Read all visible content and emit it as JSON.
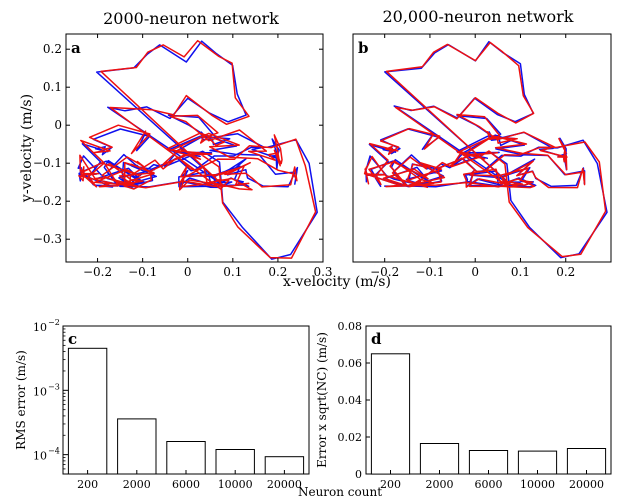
{
  "chart_data": [
    {
      "panel": "a",
      "type": "line",
      "title": "2000-neuron network",
      "xlabel": "x-velocity (m/s)",
      "ylabel": "y-velocity (m/s)",
      "xlim": [
        -0.27,
        0.3
      ],
      "ylim": [
        -0.36,
        0.24
      ],
      "xticks": [
        "−0.2",
        "−0.1",
        "0",
        "0.1",
        "0.2",
        "0.3"
      ],
      "yticks": [
        "0.2",
        "0.1",
        "0",
        "−0.1",
        "−0.2",
        "−0.3"
      ],
      "colors": {
        "series1": "#1010ee",
        "series2": "#ee1010"
      },
      "loop": [
        [
          0.02,
          -0.12
        ],
        [
          0.06,
          -0.08
        ],
        [
          0.1,
          -0.08
        ],
        [
          0.14,
          -0.06
        ],
        [
          0.18,
          -0.06
        ],
        [
          0.24,
          -0.04
        ],
        [
          0.27,
          -0.1
        ],
        [
          0.29,
          -0.23
        ],
        [
          0.23,
          -0.34
        ],
        [
          0.19,
          -0.35
        ],
        [
          0.12,
          -0.27
        ],
        [
          0.08,
          -0.2
        ],
        [
          0.07,
          -0.1
        ],
        [
          0.03,
          -0.07
        ]
      ],
      "top_loop": [
        [
          -0.2,
          0.14
        ],
        [
          -0.12,
          0.15
        ],
        [
          -0.09,
          0.19
        ],
        [
          -0.06,
          0.21
        ],
        [
          0.0,
          0.17
        ],
        [
          0.03,
          0.22
        ],
        [
          0.06,
          0.19
        ],
        [
          0.1,
          0.16
        ],
        [
          0.11,
          0.08
        ],
        [
          0.13,
          0.03
        ],
        [
          0.09,
          0.01
        ],
        [
          0.05,
          0.03
        ],
        [
          0.0,
          0.07
        ],
        [
          -0.04,
          0.02
        ],
        [
          -0.09,
          0.05
        ],
        [
          -0.14,
          0.04
        ],
        [
          -0.18,
          0.05
        ]
      ],
      "pad": 0.22,
      "base_seed": 11
    },
    {
      "panel": "b",
      "type": "line",
      "title": "20,000-neuron network",
      "xlabel": "x-velocity (m/s)",
      "xlim": [
        -0.27,
        0.3
      ],
      "ylim": [
        -0.36,
        0.24
      ],
      "xticks": [
        "−0.2",
        "−0.1",
        "0",
        "0.1",
        "0.2"
      ],
      "colors": {
        "series1": "#1010ee",
        "series2": "#ee1010"
      },
      "loop": [
        [
          0.02,
          -0.12
        ],
        [
          0.06,
          -0.08
        ],
        [
          0.1,
          -0.08
        ],
        [
          0.14,
          -0.06
        ],
        [
          0.18,
          -0.06
        ],
        [
          0.24,
          -0.04
        ],
        [
          0.27,
          -0.1
        ],
        [
          0.29,
          -0.23
        ],
        [
          0.23,
          -0.34
        ],
        [
          0.19,
          -0.35
        ],
        [
          0.12,
          -0.27
        ],
        [
          0.08,
          -0.2
        ],
        [
          0.07,
          -0.1
        ],
        [
          0.03,
          -0.07
        ]
      ],
      "top_loop": [
        [
          -0.2,
          0.14
        ],
        [
          -0.12,
          0.15
        ],
        [
          -0.09,
          0.19
        ],
        [
          -0.06,
          0.21
        ],
        [
          0.0,
          0.17
        ],
        [
          0.03,
          0.22
        ],
        [
          0.06,
          0.19
        ],
        [
          0.1,
          0.16
        ],
        [
          0.11,
          0.08
        ],
        [
          0.13,
          0.03
        ],
        [
          0.09,
          0.01
        ],
        [
          0.05,
          0.03
        ],
        [
          0.0,
          0.07
        ],
        [
          -0.04,
          0.02
        ],
        [
          -0.09,
          0.05
        ],
        [
          -0.14,
          0.04
        ],
        [
          -0.18,
          0.05
        ]
      ],
      "pad": 0.22,
      "base_seed": 11
    },
    {
      "panel": "c",
      "type": "bar",
      "scale": "log",
      "ylabel": "RMS error (m/s)",
      "xlabel": "Neuron count",
      "categories": [
        "200",
        "2000",
        "6000",
        "10000",
        "20000"
      ],
      "values": [
        0.0045,
        0.00036,
        0.00016,
        0.00012,
        9.3e-05
      ],
      "ylim": [
        5e-05,
        0.01
      ],
      "yticks": [
        {
          "base": "10",
          "exp": "−2",
          "value": 0.01
        },
        {
          "base": "10",
          "exp": "−3",
          "value": 0.001
        },
        {
          "base": "10",
          "exp": "−4",
          "value": 0.0001
        }
      ]
    },
    {
      "panel": "d",
      "type": "bar",
      "ylabel": "Error x sqrt(NC) (m/s)",
      "categories": [
        "200",
        "2000",
        "6000",
        "10000",
        "20000"
      ],
      "values": [
        0.065,
        0.0165,
        0.0127,
        0.0124,
        0.0138
      ],
      "ylim": [
        0,
        0.08
      ],
      "yticks": [
        "0",
        "0.02",
        "0.04",
        "0.06",
        "0.08"
      ]
    }
  ]
}
